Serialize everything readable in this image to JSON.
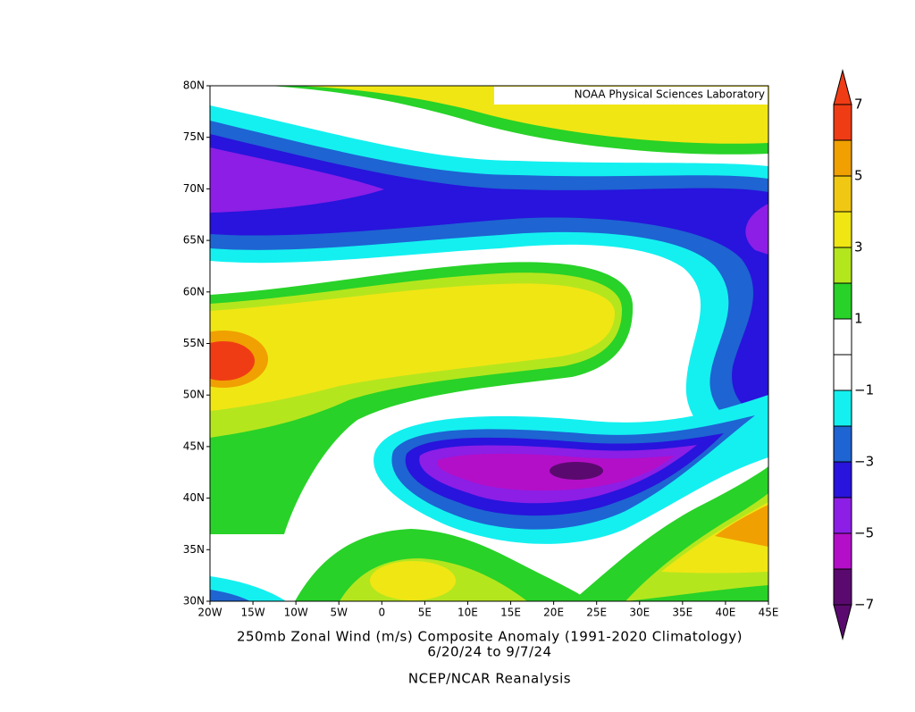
{
  "map": {
    "watermark": "NOAA Physical Sciences Laboratory",
    "lat_ticks": [
      "80N",
      "75N",
      "70N",
      "65N",
      "60N",
      "55N",
      "50N",
      "45N",
      "40N",
      "35N",
      "30N"
    ],
    "lon_ticks": [
      "20W",
      "15W",
      "10W",
      "5W",
      "0",
      "5E",
      "10E",
      "15E",
      "20E",
      "25E",
      "30E",
      "35E",
      "40E",
      "45E"
    ],
    "title": "250mb Zonal Wind (m/s) Composite Anomaly (1991-2020 Climatology)",
    "dates": "6/20/24  to 9/7/24",
    "source": "NCEP/NCAR Reanalysis"
  },
  "colorbar": {
    "lim": [
      -7,
      7
    ],
    "ticks": [
      {
        "value": -7,
        "label": "−7"
      },
      {
        "value": -5,
        "label": "−5"
      },
      {
        "value": -3,
        "label": "−3"
      },
      {
        "value": -1,
        "label": "−1"
      },
      1,
      3,
      5,
      7
    ],
    "colors": [
      "#5a0a6e",
      "#5a0a6e",
      "#b40fc8",
      "#8c1ee6",
      "#2814dc",
      "#1e64d2",
      "#14f0f0",
      "#ffffff",
      "#ffffff",
      "#28d228",
      "#b4e61e",
      "#f0e614",
      "#f0c814",
      "#f0a000",
      "#f03c14",
      "#f03c14"
    ]
  }
}
